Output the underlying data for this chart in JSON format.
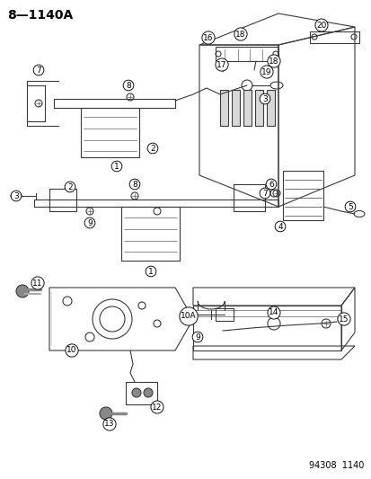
{
  "title": "8—1140A",
  "footer": "94308  1140",
  "bg_color": "#ffffff",
  "title_fontsize": 10,
  "footer_fontsize": 7,
  "line_color": "#3a3a3a",
  "label_fontsize": 6.5
}
